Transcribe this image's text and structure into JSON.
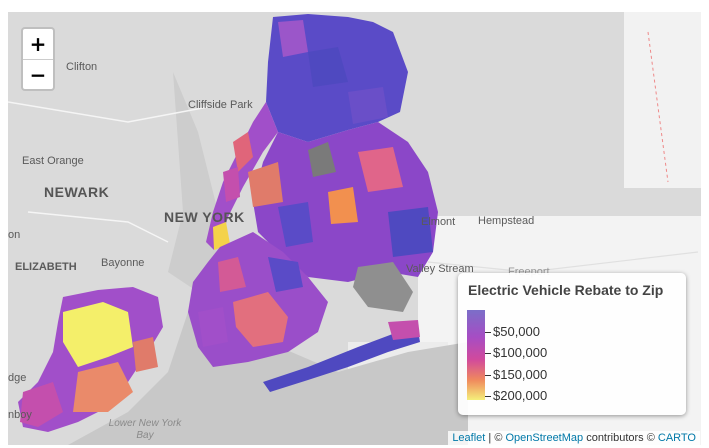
{
  "map": {
    "place_labels": {
      "clifton": "Clifton",
      "cliffside_park": "Cliffside Park",
      "east_orange": "East Orange",
      "newark": "NEWARK",
      "new_york": "NEW YORK",
      "elmont": "Elmont",
      "hempstead": "Hempstead",
      "valley_stream": "Valley Stream",
      "freeport": "Freeport",
      "elizabeth": "ELIZABETH",
      "bayonne": "Bayonne",
      "on_partial": "on",
      "dge_partial": "dge",
      "nboy_partial": "nboy",
      "lower_ny_bay": "Lower New York Bay"
    }
  },
  "zoom": {
    "in_label": "+",
    "out_label": "−"
  },
  "legend": {
    "title": "Electric Vehicle Rebate to Zip",
    "ticks": [
      "$50,000",
      "$100,000",
      "$150,000",
      "$200,000"
    ],
    "tick_values": [
      50000,
      100000,
      150000,
      200000
    ],
    "colors": [
      "#7b6ec8",
      "#a64dc4",
      "#d14a9c",
      "#f08a5d",
      "#f4ef7a"
    ]
  },
  "attribution": {
    "leaflet": "Leaflet",
    "sep1": " | © ",
    "osm": "OpenStreetMap",
    "sep2": " contributors © ",
    "carto": "CARTO"
  }
}
